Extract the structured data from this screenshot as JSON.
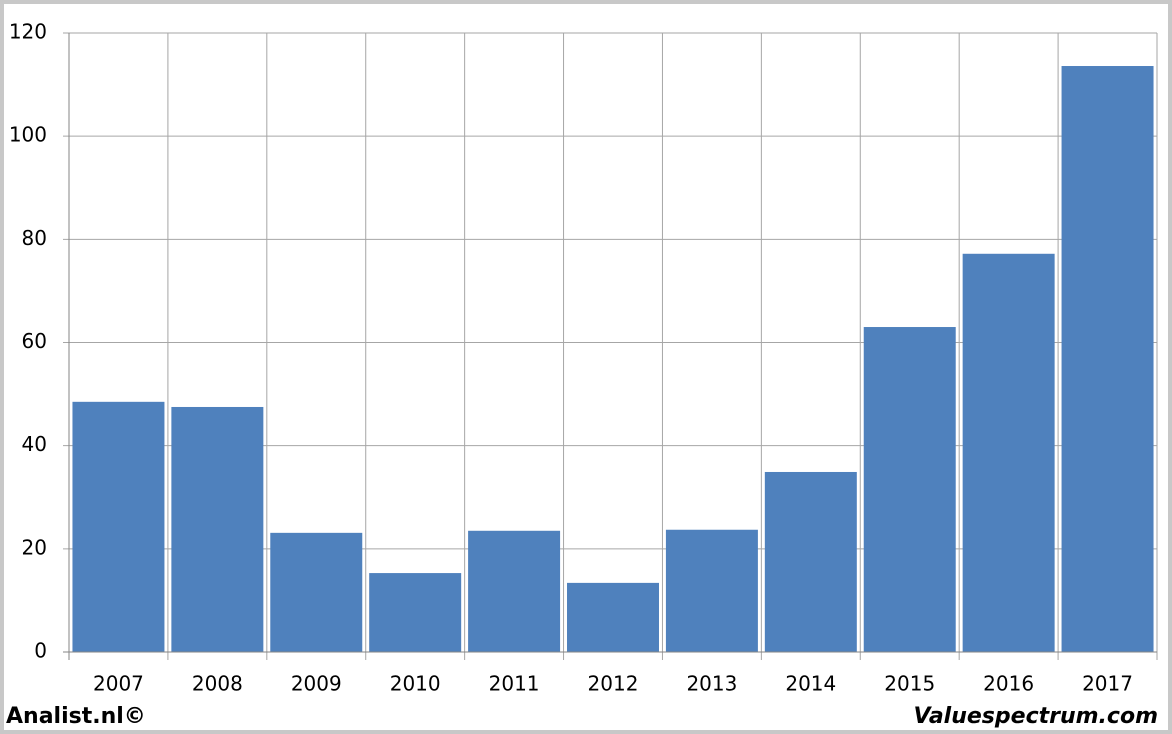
{
  "chart_data": {
    "type": "bar",
    "categories": [
      "2007",
      "2008",
      "2009",
      "2010",
      "2011",
      "2012",
      "2013",
      "2014",
      "2015",
      "2016",
      "2017"
    ],
    "values": [
      48.5,
      47.5,
      23.1,
      15.3,
      23.5,
      13.4,
      23.7,
      34.9,
      63.0,
      77.2,
      113.6
    ],
    "color": "#4f81bd",
    "ylim": [
      0,
      120
    ],
    "yticks": [
      0,
      20,
      40,
      60,
      80,
      100,
      120
    ],
    "grid": true
  },
  "footer": {
    "left": "Analist.nl©",
    "right": "Valuespectrum.com"
  }
}
